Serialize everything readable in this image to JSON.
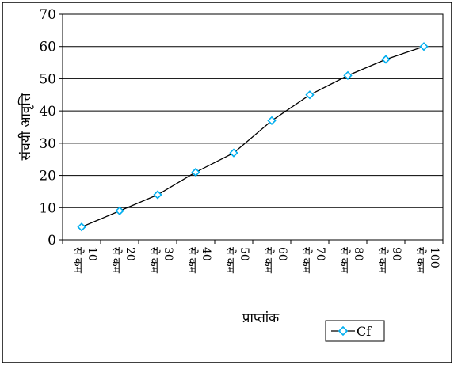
{
  "chart_data": {
    "type": "line",
    "title": "",
    "xlabel": "प्राप्तांक",
    "ylabel": "संचयी आवृत्ति",
    "ylim": [
      0,
      70
    ],
    "yticks": [
      "0",
      "10",
      "20",
      "30",
      "40",
      "50",
      "60",
      "70"
    ],
    "grid": true,
    "legend_position": "bottom-right",
    "categories": [
      {
        "prefix": "से कम",
        "num": "10"
      },
      {
        "prefix": "से कम",
        "num": "20"
      },
      {
        "prefix": "से कम",
        "num": "30"
      },
      {
        "prefix": "से कम",
        "num": "40"
      },
      {
        "prefix": "से कम",
        "num": "50"
      },
      {
        "prefix": "से कम",
        "num": "60"
      },
      {
        "prefix": "से कम",
        "num": "70"
      },
      {
        "prefix": "से कम",
        "num": "80"
      },
      {
        "prefix": "से कम",
        "num": "90"
      },
      {
        "prefix": "से कम",
        "num": "100"
      }
    ],
    "series": [
      {
        "name": "Cf",
        "values": [
          4,
          9,
          14,
          21,
          27,
          37,
          45,
          51,
          56,
          60
        ],
        "color": "#00aeef",
        "line_color": "#000000",
        "marker": "diamond"
      }
    ]
  }
}
